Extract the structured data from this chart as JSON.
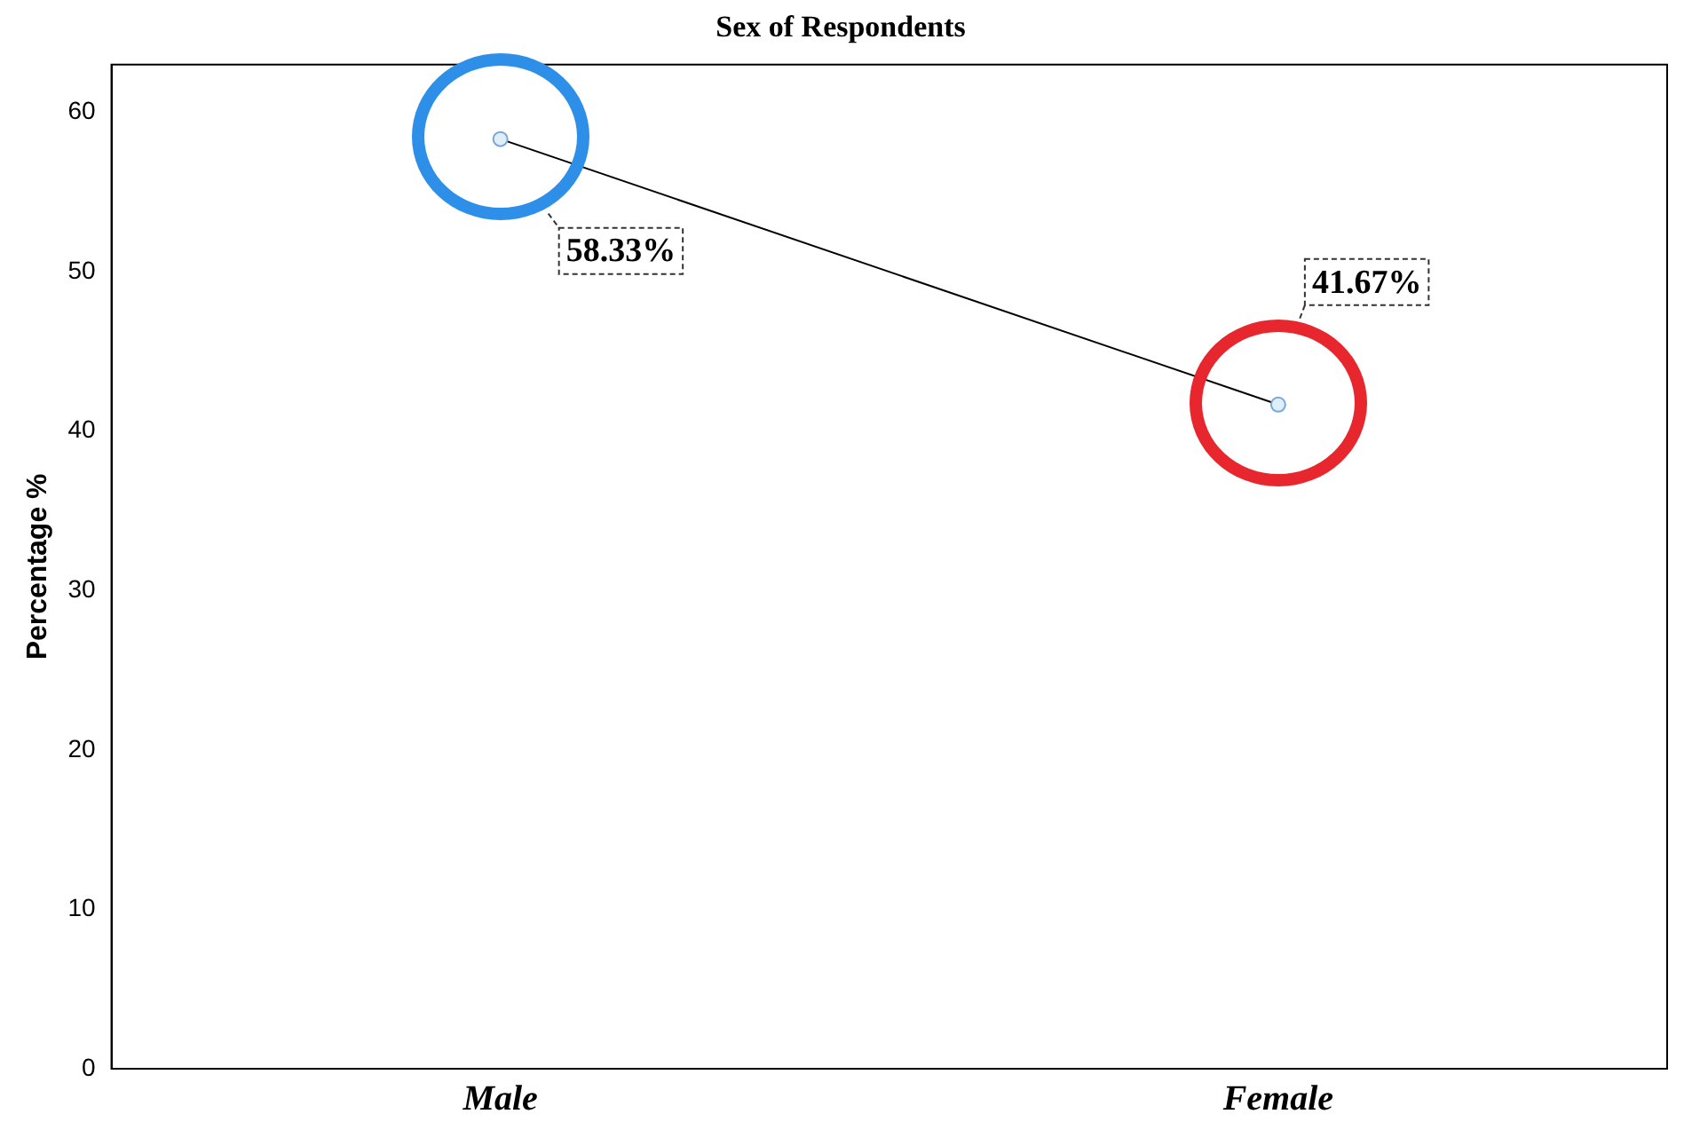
{
  "chart_data": {
    "type": "line",
    "title": "Sex of Respondents",
    "ylabel": "Percentage %",
    "categories": [
      "Male",
      "Female"
    ],
    "series": [
      {
        "color": "#000000",
        "values": [
          58.33,
          41.67
        ],
        "value_labels": [
          "58.33%",
          "41.67%"
        ]
      }
    ],
    "ylim": [
      0,
      63
    ],
    "yticks": [
      0,
      10,
      20,
      30,
      40,
      50,
      60
    ],
    "grid": false,
    "legend": false,
    "marker": "circle",
    "line_style": "solid"
  }
}
